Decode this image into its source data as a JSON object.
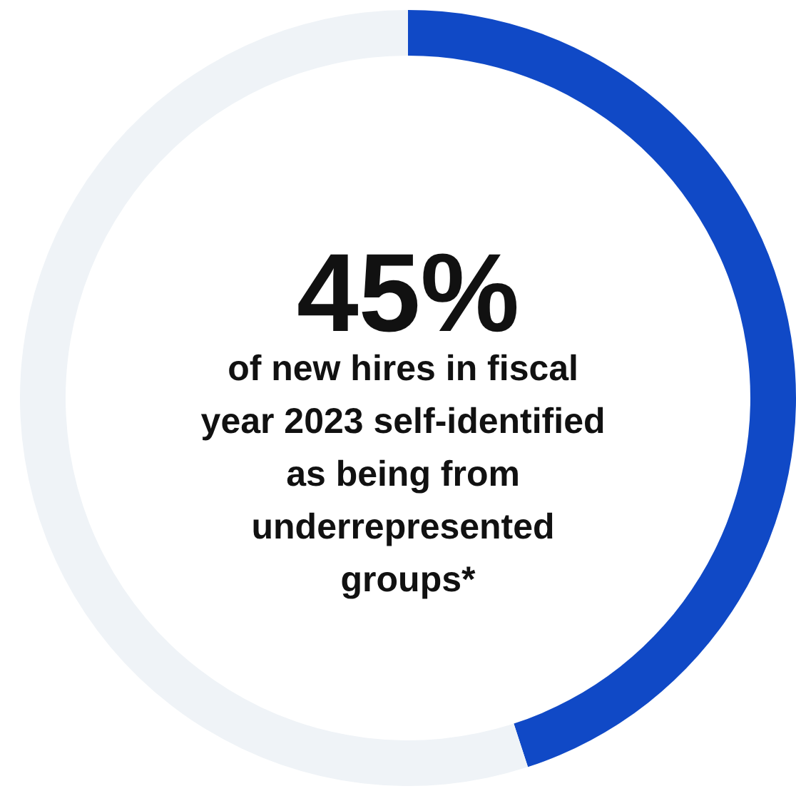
{
  "chart_data": {
    "type": "donut",
    "categories": [
      null,
      null
    ],
    "values": [
      45,
      55
    ],
    "colors": [
      "#1049c6",
      "#eff3f7"
    ],
    "value_labels": [
      "45%",
      null
    ],
    "annotations": [
      "of new hires in fiscal year 2023 self-identified as being from underrepresented groups*"
    ]
  }
}
